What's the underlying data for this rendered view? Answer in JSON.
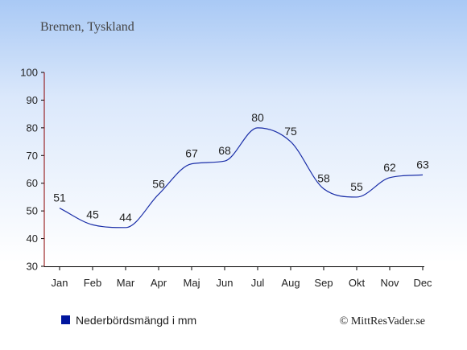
{
  "chart_data": {
    "type": "line",
    "title": "Bremen, Tyskland",
    "categories": [
      "Jan",
      "Feb",
      "Mar",
      "Apr",
      "Maj",
      "Jun",
      "Jul",
      "Aug",
      "Sep",
      "Okt",
      "Nov",
      "Dec"
    ],
    "series": [
      {
        "name": "Nederbördsmängd i mm",
        "values": [
          51,
          45,
          44,
          56,
          67,
          68,
          80,
          75,
          58,
          55,
          62,
          63
        ]
      }
    ],
    "yticks": [
      30,
      40,
      50,
      60,
      70,
      80,
      90,
      100
    ],
    "ylim": [
      30,
      100
    ],
    "grid": false,
    "legend": "bottom-left",
    "colors": {
      "line": "#1a2ea8",
      "legend_marker": "#00169e",
      "axis": "#8b0000"
    }
  },
  "credit": "© MittResVader.se"
}
